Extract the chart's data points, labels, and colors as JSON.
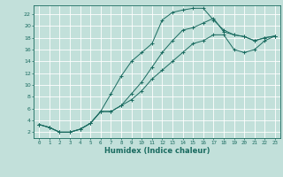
{
  "xlabel": "Humidex (Indice chaleur)",
  "background_color": "#c2e0da",
  "grid_color": "#ffffff",
  "line_color": "#1a6b60",
  "xlim": [
    -0.5,
    23.5
  ],
  "ylim": [
    1,
    23.5
  ],
  "xticks": [
    0,
    1,
    2,
    3,
    4,
    5,
    6,
    7,
    8,
    9,
    10,
    11,
    12,
    13,
    14,
    15,
    16,
    17,
    18,
    19,
    20,
    21,
    22,
    23
  ],
  "yticks": [
    2,
    4,
    6,
    8,
    10,
    12,
    14,
    16,
    18,
    20,
    22
  ],
  "line1_x": [
    0,
    1,
    2,
    3,
    4,
    5,
    6,
    7,
    8,
    9,
    10,
    11,
    12,
    13,
    14,
    15,
    16,
    17,
    18,
    19,
    20,
    21,
    22,
    23
  ],
  "line1_y": [
    3.3,
    2.8,
    2.0,
    2.0,
    2.5,
    3.5,
    5.5,
    8.5,
    11.5,
    14.0,
    15.5,
    17.0,
    21.0,
    22.3,
    22.7,
    23.0,
    23.0,
    21.0,
    19.3,
    18.5,
    18.2,
    17.5,
    18.0,
    18.3
  ],
  "line2_x": [
    0,
    1,
    2,
    3,
    4,
    5,
    6,
    7,
    8,
    9,
    10,
    11,
    12,
    13,
    14,
    15,
    16,
    17,
    18,
    19,
    20,
    21,
    22,
    23
  ],
  "line2_y": [
    3.3,
    2.8,
    2.0,
    2.0,
    2.5,
    3.5,
    5.5,
    5.5,
    6.5,
    8.5,
    10.5,
    13.0,
    15.5,
    17.5,
    19.3,
    19.7,
    20.5,
    21.3,
    19.0,
    18.5,
    18.2,
    17.5,
    18.0,
    18.3
  ],
  "line3_x": [
    0,
    1,
    2,
    3,
    4,
    5,
    6,
    7,
    8,
    9,
    10,
    11,
    12,
    13,
    14,
    15,
    16,
    17,
    18,
    19,
    20,
    21,
    22,
    23
  ],
  "line3_y": [
    3.3,
    2.8,
    2.0,
    2.0,
    2.5,
    3.5,
    5.5,
    5.5,
    6.5,
    7.5,
    9.0,
    11.0,
    12.5,
    14.0,
    15.5,
    17.0,
    17.5,
    18.5,
    18.5,
    16.0,
    15.5,
    16.0,
    17.5,
    18.3
  ]
}
